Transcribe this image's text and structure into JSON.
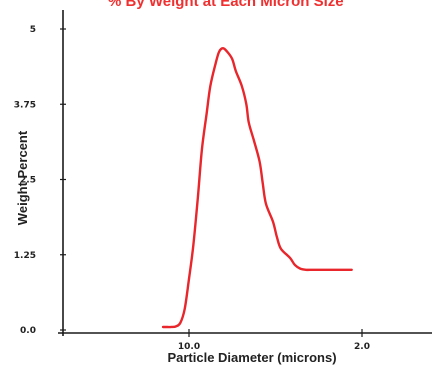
{
  "chart_data": {
    "type": "line",
    "title": "% By Weight at Each Micron Size",
    "xlabel": "Particle Diameter (microns)",
    "ylabel": "Weight Percent",
    "x_scale": "reciprocal",
    "x_ticks": [
      {
        "value": 10.0,
        "label": "10.0"
      },
      {
        "value": 2.0,
        "label": "2.0"
      }
    ],
    "y_ticks": [
      {
        "value": 0,
        "label": "0.0"
      },
      {
        "value": 1.25,
        "label": "1.25"
      },
      {
        "value": 2.5,
        "label": "2.5"
      },
      {
        "value": 3.75,
        "label": "3.75"
      },
      {
        "value": 5,
        "label": "5"
      }
    ],
    "ylim": [
      0,
      5
    ],
    "grid": false,
    "colors": {
      "line": "#e8262b",
      "title": "#f03030",
      "axis": "#1a1a1a"
    },
    "series": [
      {
        "x": [
          25.0,
          20.0,
          16.7,
          14.3,
          12.5,
          11.1,
          10.0,
          9.1,
          8.3,
          7.7,
          7.1,
          6.7,
          6.2,
          5.9,
          5.6,
          5.3,
          5.0,
          4.8,
          4.5,
          4.3,
          4.2,
          4.0,
          3.8,
          3.7,
          3.6,
          3.4,
          3.3,
          3.2,
          3.0,
          2.9,
          2.8,
          2.7,
          2.6,
          2.5,
          2.4,
          2.3,
          2.2,
          2.1
        ],
        "values": [
          0.05,
          0.05,
          0.05,
          0.06,
          0.12,
          0.35,
          0.85,
          1.4,
          2.2,
          3.0,
          3.6,
          4.05,
          4.42,
          4.62,
          4.68,
          4.62,
          4.5,
          4.3,
          4.05,
          3.75,
          3.45,
          3.15,
          2.8,
          2.45,
          2.1,
          1.8,
          1.55,
          1.35,
          1.2,
          1.08,
          1.02,
          1.0,
          1.0,
          1.0,
          1.0,
          1.0,
          1.0,
          1.0
        ]
      }
    ]
  }
}
